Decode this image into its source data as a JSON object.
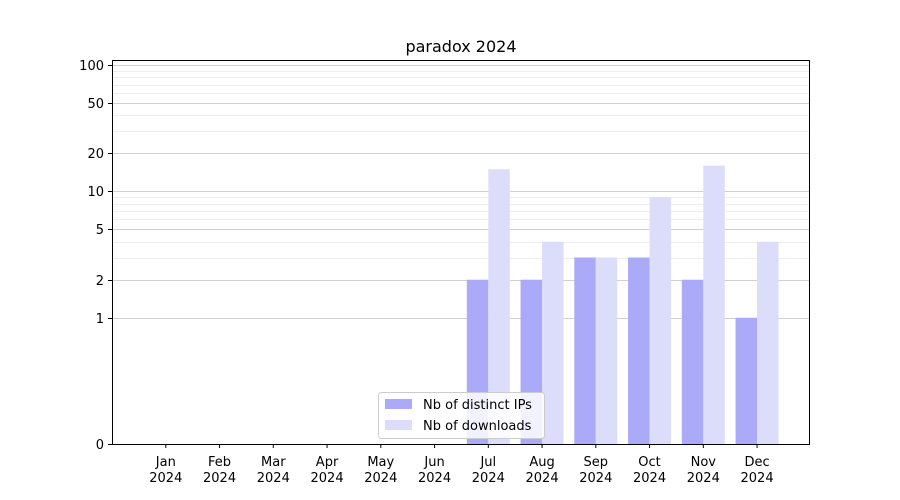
{
  "chart_data": {
    "type": "bar",
    "title": "paradox 2024",
    "xlabel": "",
    "ylabel": "",
    "yscale": "symlog",
    "ylim": [
      0,
      110
    ],
    "major_y_ticks": [
      0,
      1,
      2,
      5,
      10,
      20,
      50,
      100
    ],
    "major_y_tick_labels": [
      "0",
      "1",
      "2",
      "5",
      "10",
      "20",
      "50",
      "100"
    ],
    "minor_y_ticks": [
      3,
      4,
      6,
      7,
      8,
      9,
      30,
      40,
      60,
      70,
      80,
      90
    ],
    "categories": [
      "Jan 2024",
      "Feb 2024",
      "Mar 2024",
      "Apr 2024",
      "May 2024",
      "Jun 2024",
      "Jul 2024",
      "Aug 2024",
      "Sep 2024",
      "Oct 2024",
      "Nov 2024",
      "Dec 2024"
    ],
    "category_labels": [
      [
        "Jan",
        "2024"
      ],
      [
        "Feb",
        "2024"
      ],
      [
        "Mar",
        "2024"
      ],
      [
        "Apr",
        "2024"
      ],
      [
        "May",
        "2024"
      ],
      [
        "Jun",
        "2024"
      ],
      [
        "Jul",
        "2024"
      ],
      [
        "Aug",
        "2024"
      ],
      [
        "Sep",
        "2024"
      ],
      [
        "Oct",
        "2024"
      ],
      [
        "Nov",
        "2024"
      ],
      [
        "Dec",
        "2024"
      ]
    ],
    "series": [
      {
        "name": "Nb of distinct IPs",
        "color": "#aaaaf8",
        "values": [
          0,
          0,
          0,
          0,
          0,
          0,
          2,
          2,
          3,
          3,
          2,
          1
        ]
      },
      {
        "name": "Nb of downloads",
        "color": "#dcdcfb",
        "values": [
          0,
          0,
          0,
          0,
          0,
          0,
          15,
          4,
          3,
          9,
          16,
          4
        ]
      }
    ],
    "grid": "y",
    "legend_position": "lower-center"
  }
}
